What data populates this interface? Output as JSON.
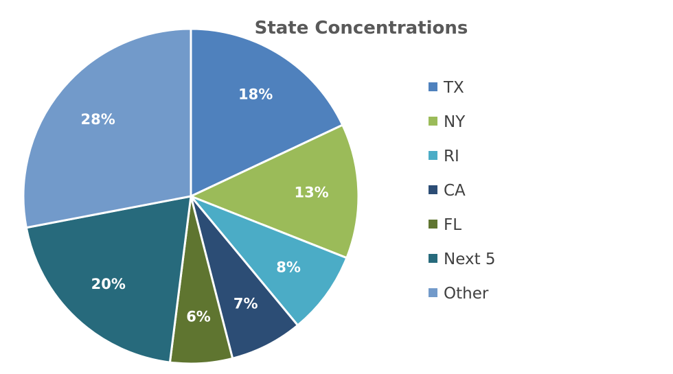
{
  "chart_data": {
    "type": "pie",
    "title": "State Concentrations",
    "legend_position": "right",
    "slices": [
      {
        "name": "TX",
        "value": 18,
        "label": "18%",
        "color": "#4F81BD"
      },
      {
        "name": "NY",
        "value": 13,
        "label": "13%",
        "color": "#9BBB59"
      },
      {
        "name": "RI",
        "value": 8,
        "label": "8%",
        "color": "#4BACC6"
      },
      {
        "name": "CA",
        "value": 7,
        "label": "7%",
        "color": "#2C4D75"
      },
      {
        "name": "FL",
        "value": 6,
        "label": "6%",
        "color": "#5F7530"
      },
      {
        "name": "Next 5",
        "value": 20,
        "label": "20%",
        "color": "#276A7C"
      },
      {
        "name": "Other",
        "value": 28,
        "label": "28%",
        "color": "#729ACA"
      }
    ]
  }
}
